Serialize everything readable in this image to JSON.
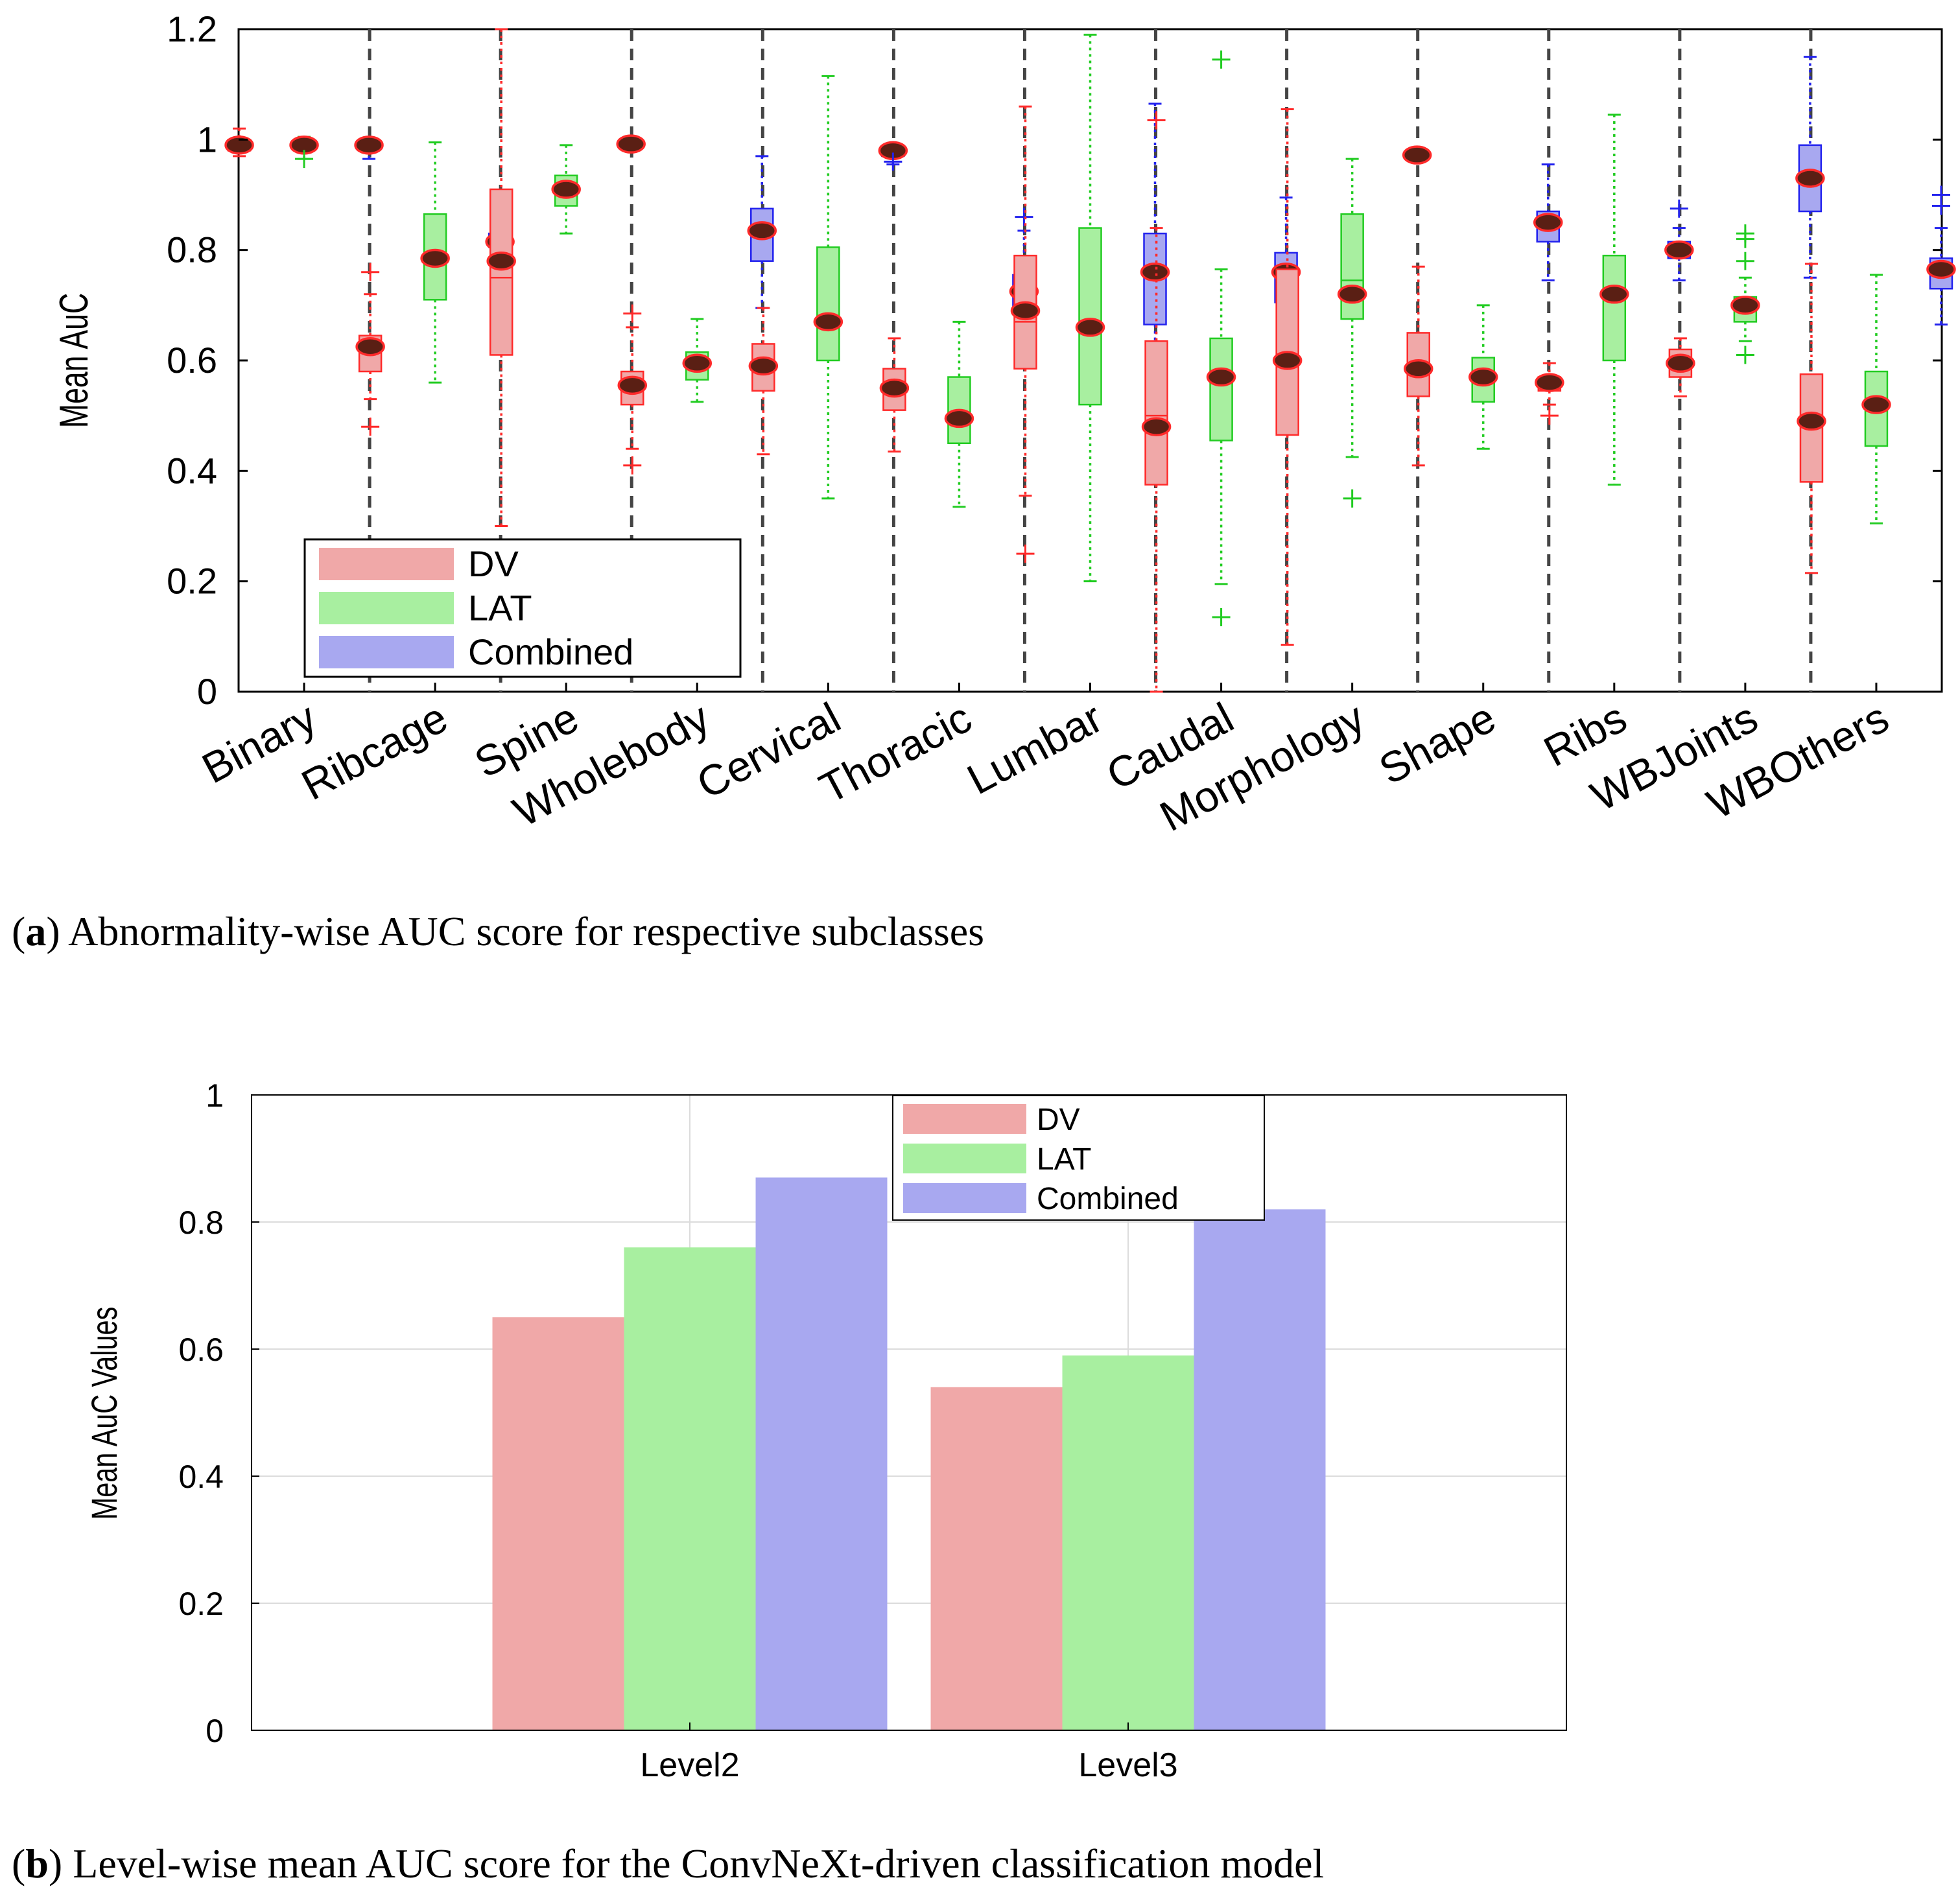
{
  "colors": {
    "dv": "#F0A8A8",
    "lat": "#A8EFA0",
    "combined": "#A8A8F0",
    "dv_edge": "#ff2a2a",
    "lat_edge": "#22cc22",
    "combined_edge": "#2222ee",
    "separator": "#444444"
  },
  "caption_a": {
    "letter": "a",
    "text": " Abnormality-wise AUC score for respective subclasses"
  },
  "caption_b": {
    "letter": "b",
    "text": " Level-wise mean AUC score for the ConvNeXt-driven classification model"
  },
  "chart_data": [
    {
      "type": "box",
      "title": "",
      "xlabel": "",
      "ylabel": "Mean AuC",
      "ylim": [
        0,
        1.2
      ],
      "yticks": [
        "0",
        "0.2",
        "0.4",
        "0.6",
        "0.8",
        "1",
        "1.2"
      ],
      "legend": {
        "position": "bottom-left",
        "entries": [
          "DV",
          "LAT",
          "Combined"
        ]
      },
      "categories": [
        {
          "name": "Binary",
          "series": [
            "DV",
            "LAT",
            "Combined"
          ]
        },
        {
          "name": "Ribcage",
          "series": [
            "DV",
            "LAT",
            "Combined"
          ]
        },
        {
          "name": "Spine",
          "series": [
            "DV",
            "LAT",
            "Combined"
          ]
        },
        {
          "name": "Wholebody",
          "series": [
            "DV",
            "LAT",
            "Combined"
          ]
        },
        {
          "name": "Cervical",
          "series": [
            "DV",
            "LAT",
            "Combined"
          ]
        },
        {
          "name": "Thoracic",
          "series": [
            "DV",
            "LAT",
            "Combined"
          ]
        },
        {
          "name": "Lumbar",
          "series": [
            "DV",
            "LAT",
            "Combined"
          ]
        },
        {
          "name": "Caudal",
          "series": [
            "DV",
            "LAT",
            "Combined"
          ]
        },
        {
          "name": "Morphology",
          "series": [
            "DV",
            "LAT",
            "Combined"
          ]
        },
        {
          "name": "Shape",
          "series": [
            "DV",
            "LAT",
            "Combined"
          ]
        },
        {
          "name": "Ribs",
          "series": [
            "DV",
            "LAT",
            "Combined"
          ]
        },
        {
          "name": "WBJoints",
          "series": [
            "DV",
            "LAT",
            "Combined"
          ]
        },
        {
          "name": "WBOthers",
          "series": [
            "DV",
            "LAT",
            "Combined"
          ]
        }
      ],
      "boxes": [
        {
          "category": "Binary",
          "series": "DV",
          "min": 0.97,
          "q1": 0.98,
          "median": 0.99,
          "q3": 1.0,
          "max": 1.02,
          "mean": 0.99,
          "outliers": []
        },
        {
          "category": "Binary",
          "series": "LAT",
          "min": 0.965,
          "q1": 0.982,
          "median": 0.99,
          "q3": 0.998,
          "max": 1.005,
          "mean": 0.99,
          "outliers": [
            0.965
          ]
        },
        {
          "category": "Binary",
          "series": "Combined",
          "min": 0.965,
          "q1": 0.982,
          "median": 0.99,
          "q3": 0.998,
          "max": 1.0,
          "mean": 0.99,
          "outliers": []
        },
        {
          "category": "Ribcage",
          "series": "DV",
          "min": 0.53,
          "q1": 0.58,
          "median": 0.62,
          "q3": 0.645,
          "max": 0.72,
          "mean": 0.625,
          "outliers": [
            0.76,
            0.48
          ]
        },
        {
          "category": "Ribcage",
          "series": "LAT",
          "min": 0.56,
          "q1": 0.71,
          "median": 0.78,
          "q3": 0.865,
          "max": 0.995,
          "mean": 0.785,
          "outliers": []
        },
        {
          "category": "Ribcage",
          "series": "Combined",
          "min": 0.785,
          "q1": 0.805,
          "median": 0.815,
          "q3": 0.83,
          "max": 0.84,
          "mean": 0.815,
          "outliers": [
            0.85,
            0.86
          ]
        },
        {
          "category": "Spine",
          "series": "DV",
          "min": 0.3,
          "q1": 0.61,
          "median": 0.75,
          "q3": 0.91,
          "max": 1.2,
          "mean": 0.78,
          "outliers": []
        },
        {
          "category": "Spine",
          "series": "LAT",
          "min": 0.83,
          "q1": 0.88,
          "median": 0.92,
          "q3": 0.935,
          "max": 0.99,
          "mean": 0.91,
          "outliers": []
        },
        {
          "category": "Spine",
          "series": "Combined",
          "min": 0.985,
          "q1": 0.988,
          "median": 0.992,
          "q3": 0.995,
          "max": 0.998,
          "mean": 0.992,
          "outliers": []
        },
        {
          "category": "Wholebody",
          "series": "DV",
          "min": 0.44,
          "q1": 0.52,
          "median": 0.545,
          "q3": 0.58,
          "max": 0.66,
          "mean": 0.555,
          "outliers": [
            0.685,
            0.41
          ]
        },
        {
          "category": "Wholebody",
          "series": "LAT",
          "min": 0.525,
          "q1": 0.565,
          "median": 0.59,
          "q3": 0.615,
          "max": 0.675,
          "mean": 0.595,
          "outliers": []
        },
        {
          "category": "Wholebody",
          "series": "Combined",
          "min": 0.695,
          "q1": 0.78,
          "median": 0.84,
          "q3": 0.875,
          "max": 0.97,
          "mean": 0.835,
          "outliers": []
        },
        {
          "category": "Cervical",
          "series": "DV",
          "min": 0.43,
          "q1": 0.545,
          "median": 0.58,
          "q3": 0.63,
          "max": 0.695,
          "mean": 0.59,
          "outliers": []
        },
        {
          "category": "Cervical",
          "series": "LAT",
          "min": 0.35,
          "q1": 0.6,
          "median": 0.67,
          "q3": 0.805,
          "max": 1.115,
          "mean": 0.67,
          "outliers": []
        },
        {
          "category": "Cervical",
          "series": "Combined",
          "min": 0.955,
          "q1": 0.97,
          "median": 0.98,
          "q3": 0.985,
          "max": 0.99,
          "mean": 0.98,
          "outliers": [
            0.96
          ]
        },
        {
          "category": "Thoracic",
          "series": "DV",
          "min": 0.435,
          "q1": 0.51,
          "median": 0.545,
          "q3": 0.585,
          "max": 0.64,
          "mean": 0.55,
          "outliers": []
        },
        {
          "category": "Thoracic",
          "series": "LAT",
          "min": 0.335,
          "q1": 0.45,
          "median": 0.49,
          "q3": 0.57,
          "max": 0.67,
          "mean": 0.495,
          "outliers": []
        },
        {
          "category": "Thoracic",
          "series": "Combined",
          "min": 0.62,
          "q1": 0.69,
          "median": 0.72,
          "q3": 0.755,
          "max": 0.835,
          "mean": 0.725,
          "outliers": [
            0.86
          ]
        },
        {
          "category": "Lumbar",
          "series": "DV",
          "min": 0.355,
          "q1": 0.585,
          "median": 0.67,
          "q3": 0.79,
          "max": 1.06,
          "mean": 0.69,
          "outliers": [
            0.25
          ]
        },
        {
          "category": "Lumbar",
          "series": "LAT",
          "min": 0.2,
          "q1": 0.52,
          "median": 0.65,
          "q3": 0.84,
          "max": 1.19,
          "mean": 0.66,
          "outliers": []
        },
        {
          "category": "Lumbar",
          "series": "Combined",
          "min": 0.515,
          "q1": 0.665,
          "median": 0.75,
          "q3": 0.83,
          "max": 1.065,
          "mean": 0.76,
          "outliers": [
            0.41
          ]
        },
        {
          "category": "Caudal",
          "series": "DV",
          "min": 0.0,
          "q1": 0.375,
          "median": 0.5,
          "q3": 0.635,
          "max": 0.84,
          "mean": 0.48,
          "outliers": [
            1.035
          ]
        },
        {
          "category": "Caudal",
          "series": "LAT",
          "min": 0.195,
          "q1": 0.455,
          "median": 0.58,
          "q3": 0.64,
          "max": 0.765,
          "mean": 0.57,
          "outliers": [
            1.145,
            0.135
          ]
        },
        {
          "category": "Caudal",
          "series": "Combined",
          "min": 0.615,
          "q1": 0.705,
          "median": 0.755,
          "q3": 0.795,
          "max": 0.895,
          "mean": 0.76,
          "outliers": []
        },
        {
          "category": "Morphology",
          "series": "DV",
          "min": 0.085,
          "q1": 0.465,
          "median": 0.6,
          "q3": 0.765,
          "max": 1.055,
          "mean": 0.6,
          "outliers": []
        },
        {
          "category": "Morphology",
          "series": "LAT",
          "min": 0.425,
          "q1": 0.675,
          "median": 0.745,
          "q3": 0.865,
          "max": 0.965,
          "mean": 0.72,
          "outliers": [
            0.35
          ]
        },
        {
          "category": "Morphology",
          "series": "Combined",
          "min": 0.965,
          "q1": 0.968,
          "median": 0.972,
          "q3": 0.976,
          "max": 0.98,
          "mean": 0.972,
          "outliers": []
        },
        {
          "category": "Shape",
          "series": "DV",
          "min": 0.41,
          "q1": 0.535,
          "median": 0.58,
          "q3": 0.65,
          "max": 0.77,
          "mean": 0.585,
          "outliers": []
        },
        {
          "category": "Shape",
          "series": "LAT",
          "min": 0.44,
          "q1": 0.525,
          "median": 0.565,
          "q3": 0.605,
          "max": 0.7,
          "mean": 0.57,
          "outliers": []
        },
        {
          "category": "Shape",
          "series": "Combined",
          "min": 0.745,
          "q1": 0.815,
          "median": 0.85,
          "q3": 0.87,
          "max": 0.955,
          "mean": 0.85,
          "outliers": []
        },
        {
          "category": "Ribs",
          "series": "DV",
          "min": 0.52,
          "q1": 0.545,
          "median": 0.555,
          "q3": 0.57,
          "max": 0.595,
          "mean": 0.56,
          "outliers": [
            0.5
          ]
        },
        {
          "category": "Ribs",
          "series": "LAT",
          "min": 0.375,
          "q1": 0.6,
          "median": 0.715,
          "q3": 0.79,
          "max": 1.045,
          "mean": 0.72,
          "outliers": []
        },
        {
          "category": "Ribs",
          "series": "Combined",
          "min": 0.745,
          "q1": 0.785,
          "median": 0.8,
          "q3": 0.815,
          "max": 0.84,
          "mean": 0.8,
          "outliers": [
            0.875
          ]
        },
        {
          "category": "WBJoints",
          "series": "DV",
          "min": 0.535,
          "q1": 0.57,
          "median": 0.6,
          "q3": 0.62,
          "max": 0.64,
          "mean": 0.595,
          "outliers": []
        },
        {
          "category": "WBJoints",
          "series": "LAT",
          "min": 0.635,
          "q1": 0.67,
          "median": 0.705,
          "q3": 0.715,
          "max": 0.75,
          "mean": 0.7,
          "outliers": [
            0.83,
            0.82,
            0.78,
            0.61
          ]
        },
        {
          "category": "WBJoints",
          "series": "Combined",
          "min": 0.75,
          "q1": 0.87,
          "median": 0.93,
          "q3": 0.99,
          "max": 1.15,
          "mean": 0.93,
          "outliers": []
        },
        {
          "category": "WBOthers",
          "series": "DV",
          "min": 0.215,
          "q1": 0.38,
          "median": 0.49,
          "q3": 0.575,
          "max": 0.775,
          "mean": 0.49,
          "outliers": []
        },
        {
          "category": "WBOthers",
          "series": "LAT",
          "min": 0.305,
          "q1": 0.445,
          "median": 0.52,
          "q3": 0.58,
          "max": 0.755,
          "mean": 0.52,
          "outliers": []
        },
        {
          "category": "WBOthers",
          "series": "Combined",
          "min": 0.665,
          "q1": 0.73,
          "median": 0.76,
          "q3": 0.785,
          "max": 0.84,
          "mean": 0.765,
          "outliers": [
            0.9,
            0.88
          ]
        }
      ]
    },
    {
      "type": "bar",
      "title": "",
      "xlabel": "",
      "ylabel": "Mean AuC Values",
      "ylim": [
        0,
        1
      ],
      "yticks": [
        "0",
        "0.2",
        "0.4",
        "0.6",
        "0.8",
        "1"
      ],
      "grid": true,
      "legend": {
        "position": "top-center",
        "entries": [
          "DV",
          "LAT",
          "Combined"
        ]
      },
      "categories": [
        "Level2",
        "Level3"
      ],
      "series": [
        {
          "name": "DV",
          "values": [
            0.65,
            0.54
          ]
        },
        {
          "name": "LAT",
          "values": [
            0.76,
            0.59
          ]
        },
        {
          "name": "Combined",
          "values": [
            0.87,
            0.82
          ]
        }
      ]
    }
  ]
}
